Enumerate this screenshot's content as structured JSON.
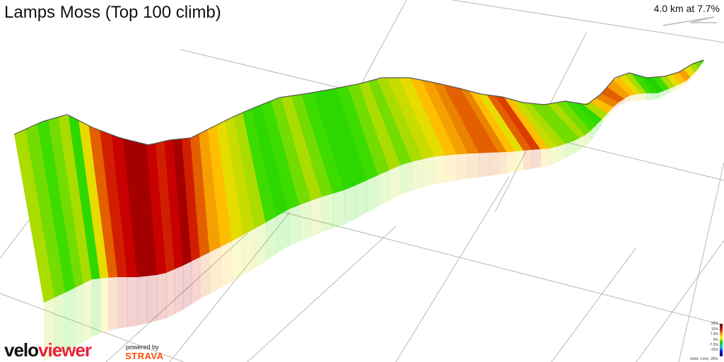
{
  "chart_data": {
    "type": "area",
    "title": "Lamps Moss (Top 100 climb)",
    "summary": "4.0 km at 7.7%",
    "distance_km": 4.0,
    "avg_gradient_pct": 7.7,
    "description_of_series": "elevation profile segments colored by gradient",
    "gradient_pct": [
      6,
      5,
      4,
      5,
      6,
      3,
      8,
      12,
      14,
      15,
      16,
      16,
      15,
      14,
      15,
      16,
      14,
      12,
      10,
      9,
      8,
      7,
      6,
      4,
      3,
      4,
      5,
      6,
      5,
      4,
      3,
      3,
      4,
      5,
      6,
      5,
      6,
      7,
      8,
      9,
      10,
      11,
      12,
      12,
      11,
      9,
      8,
      12,
      13,
      9,
      7,
      6,
      5,
      5,
      6,
      5,
      4,
      3,
      6,
      9,
      11,
      12,
      10,
      9,
      8,
      6,
      4,
      3,
      2,
      4,
      6,
      8,
      9,
      10,
      8,
      6,
      5,
      4
    ],
    "legend": {
      "ticks": [
        "25%",
        "15%",
        "7.5%",
        "0%",
        "-7.5%",
        "-15%",
        "-25%"
      ],
      "note": "(Grid: 1 km)"
    }
  },
  "branding": {
    "logo_part1": "velo",
    "logo_part2": "viewer",
    "powered_by": "powered by",
    "strava": "STRAVA"
  },
  "colors": {
    "gradient_scale": [
      "#00cc00",
      "#33dd00",
      "#99dd00",
      "#dddd00",
      "#ffcc00",
      "#ee8800",
      "#dd4400",
      "#cc0000",
      "#990000"
    ],
    "grid": "#b8b8b8",
    "outline": "#555555"
  }
}
